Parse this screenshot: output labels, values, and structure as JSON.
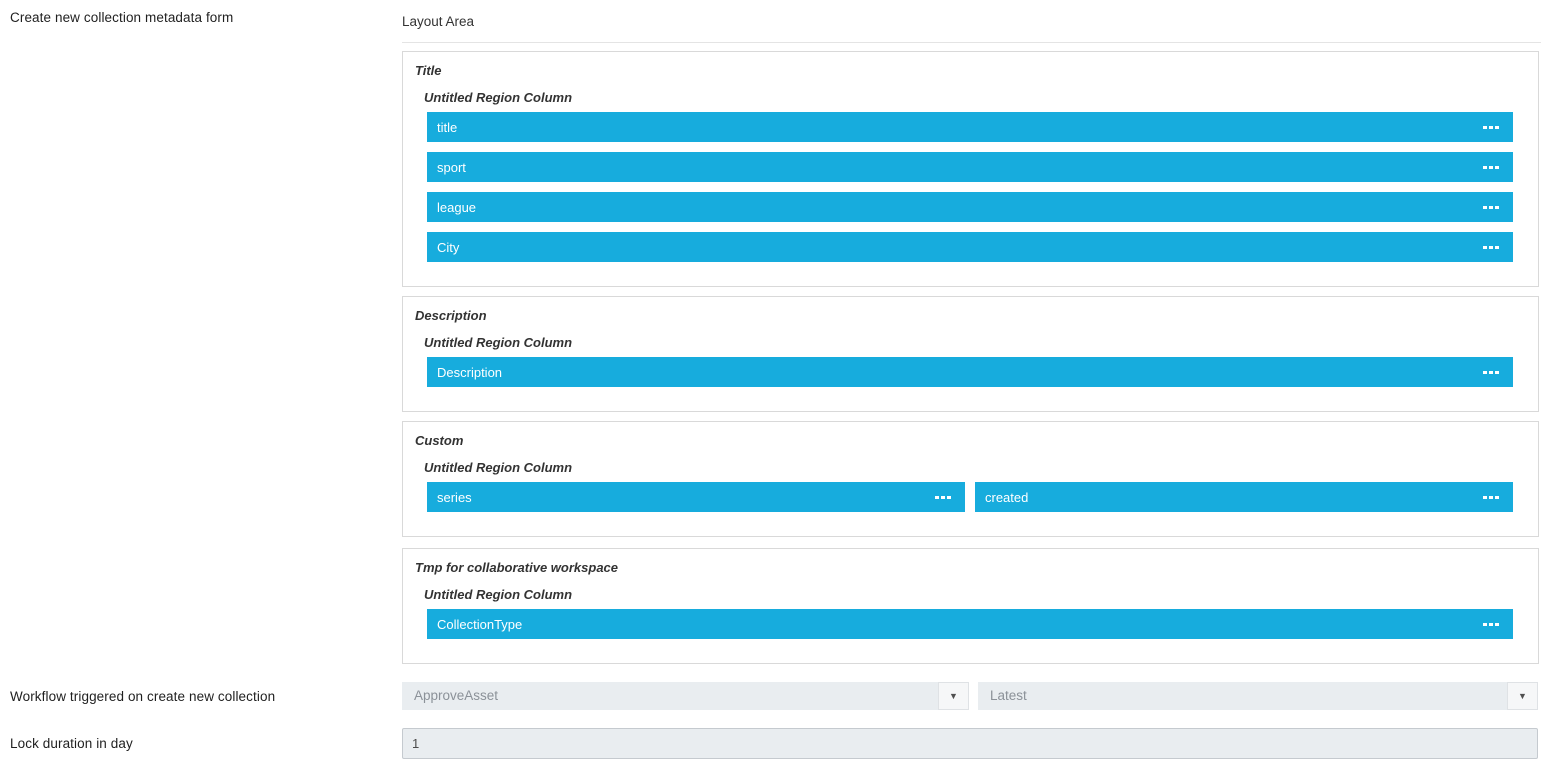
{
  "labels": {
    "create_form": "Create new collection metadata form",
    "workflow": "Workflow triggered on create new collection",
    "lock_duration": "Lock duration in day"
  },
  "layout_area": {
    "title": "Layout Area",
    "sections": [
      {
        "title": "Title",
        "region": "Untitled Region Column",
        "fields": [
          "title",
          "sport",
          "league",
          "City"
        ]
      },
      {
        "title": "Description",
        "region": "Untitled Region Column",
        "fields": [
          "Description"
        ]
      },
      {
        "title": "Custom",
        "region": "Untitled Region Column",
        "fields": [
          "series",
          "created"
        ]
      },
      {
        "title": "Tmp for collaborative workspace",
        "region": "Untitled Region Column",
        "fields": [
          "CollectionType"
        ]
      }
    ]
  },
  "workflow": {
    "trigger_selected": "ApproveAsset",
    "version_selected": "Latest"
  },
  "lock": {
    "value": "1"
  },
  "icons": {
    "dropdown_arrow": "▼"
  },
  "colors": {
    "field_bar_blue": "#17ACDD",
    "dropdown_bg": "#E9EDF0",
    "panel_border": "#D9D9D9",
    "input_border": "#C5CACF"
  }
}
